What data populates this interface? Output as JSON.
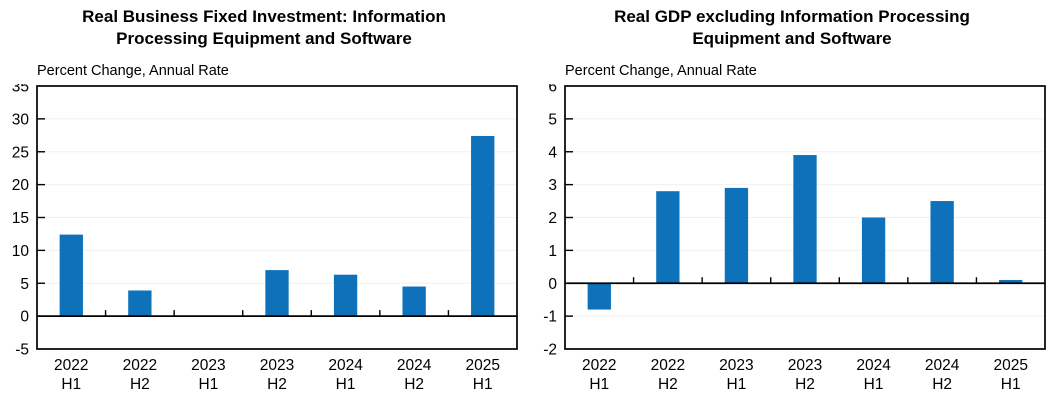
{
  "page": {
    "background": "#ffffff"
  },
  "chart_data": [
    {
      "type": "bar",
      "title": "Real Business Fixed Investment: Information Processing Equipment and Software",
      "title_lines": [
        "Real Business Fixed Investment: Information",
        "Processing Equipment and Software"
      ],
      "subtitle": "Percent Change, Annual Rate",
      "categories": [
        "2022 H1",
        "2022 H2",
        "2023 H1",
        "2023 H2",
        "2024 H1",
        "2024 H2",
        "2025 H1"
      ],
      "values": [
        12.4,
        3.9,
        0.1,
        7.0,
        6.3,
        4.5,
        27.4
      ],
      "ylim": [
        -5,
        35
      ],
      "yticks": [
        35,
        30,
        25,
        20,
        15,
        10,
        5,
        0,
        -5
      ],
      "xlabel": "",
      "ylabel": "",
      "legend_position": "none",
      "grid": true,
      "bar_color": "#0d72ba",
      "grid_color": "#f0f0f0",
      "axis_color": "#000000"
    },
    {
      "type": "bar",
      "title": "Real GDP excluding Information Processing Equipment and Software",
      "title_lines": [
        "Real GDP excluding Information Processing",
        "Equipment and Software"
      ],
      "subtitle": "Percent Change, Annual Rate",
      "categories": [
        "2022 H1",
        "2022 H2",
        "2023 H1",
        "2023 H2",
        "2024 H1",
        "2024 H2",
        "2025 H1"
      ],
      "values": [
        -0.8,
        2.8,
        2.9,
        3.9,
        2.0,
        2.5,
        0.1
      ],
      "ylim": [
        -2,
        6
      ],
      "yticks": [
        6,
        5,
        4,
        3,
        2,
        1,
        0,
        -1,
        -2
      ],
      "xlabel": "",
      "ylabel": "",
      "legend_position": "none",
      "grid": true,
      "bar_color": "#0d72ba",
      "grid_color": "#f0f0f0",
      "axis_color": "#000000"
    }
  ]
}
